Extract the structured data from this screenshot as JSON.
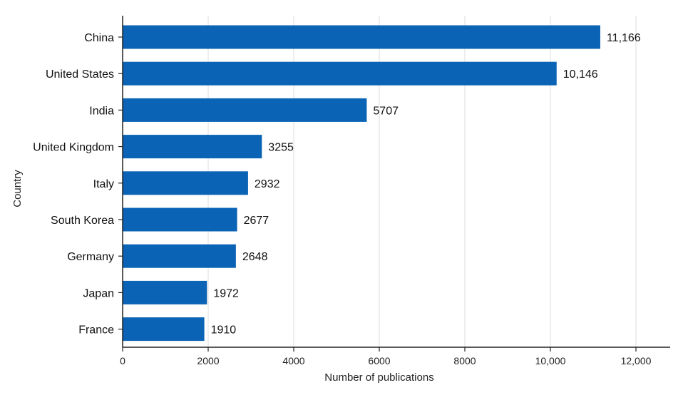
{
  "chart_data": {
    "type": "bar",
    "orientation": "horizontal",
    "categories": [
      "China",
      "United States",
      "India",
      "United Kingdom",
      "Italy",
      "South Korea",
      "Germany",
      "Japan",
      "France"
    ],
    "values": [
      11166,
      10146,
      5707,
      3255,
      2932,
      2677,
      2648,
      1972,
      1910
    ],
    "value_labels": [
      "11,166",
      "10,146",
      "5707",
      "3255",
      "2932",
      "2677",
      "2648",
      "1972",
      "1910"
    ],
    "xlabel": "Number of publications",
    "ylabel": "Country",
    "xlim": [
      0,
      12800
    ],
    "xticks": [
      0,
      2000,
      4000,
      6000,
      8000,
      10000,
      12000
    ],
    "xtick_labels": [
      "0",
      "2000",
      "4000",
      "6000",
      "8000",
      "10,000",
      "12,000"
    ],
    "grid": "vertical",
    "bar_color": "#0b63b5"
  }
}
